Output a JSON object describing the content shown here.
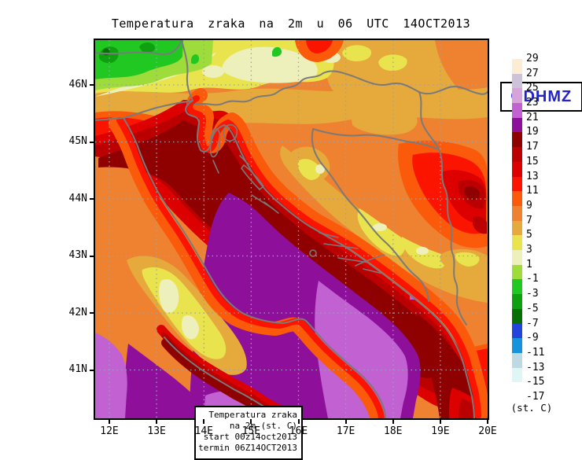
{
  "title": "Temperatura zraka na 2m u 06 UTC 14OCT2013",
  "watermark": {
    "text": "©DHMZ",
    "color": "#2323cd",
    "background": "#ffffff"
  },
  "inset_legend": {
    "lines": [
      "Temperatura zraka",
      "na 2m (st. C)",
      "start 00z14oct2013",
      "termin 06Z14OCT2013"
    ]
  },
  "chart_data": {
    "type": "heatmap",
    "title": "Temperatura zraka na 2m u 06 UTC 14OCT2013",
    "variable": "Temperatura zraka na 2m",
    "unit": "st. C",
    "region": "Croatia and Adriatic Sea",
    "x_axis": {
      "ticks": [
        "12E",
        "13E",
        "14E",
        "15E",
        "16E",
        "17E",
        "18E",
        "19E",
        "20E"
      ]
    },
    "y_axis": {
      "ticks": [
        "46N",
        "45N",
        "44N",
        "43N",
        "42N",
        "41N"
      ]
    },
    "grid": true,
    "grid_color": "#96a2b4",
    "border_color": "#7a7a7a",
    "colorbar": {
      "position": "right",
      "unit_label": "(st. C)",
      "labels": [
        "29",
        "27",
        "25",
        "23",
        "21",
        "19",
        "17",
        "15",
        "13",
        "11",
        "9",
        "7",
        "5",
        "3",
        "1",
        "-1",
        "-3",
        "-5",
        "-7",
        "-9",
        "-11",
        "-13",
        "-15",
        "-17"
      ],
      "colors": [
        "#fcecd4",
        "#cdc2d8",
        "#d6a3da",
        "#c261d1",
        "#8e0f9a",
        "#8f0000",
        "#ba0000",
        "#dd0000",
        "#fb1500",
        "#fa5a0a",
        "#ee8230",
        "#e6a93c",
        "#e9e44e",
        "#eef0bb",
        "#9edc3c",
        "#22c822",
        "#0fa00f",
        "#067006",
        "#2244dd",
        "#1593dd",
        "#bcd9e4",
        "#e0f6f6",
        "#ffffff"
      ]
    },
    "field_summary": {
      "adriatic_sea": "17-21 st.C (dark red to purple), south Adriatic 21-23 (orchid)",
      "coast": "11-17 st.C red band",
      "inland_croatia_bosnia": "3-11 st.C yellow to orange",
      "slovenia_north": "1-5 st.C yellow, pale",
      "alps_northwest": "below -1 st.C greens"
    }
  }
}
